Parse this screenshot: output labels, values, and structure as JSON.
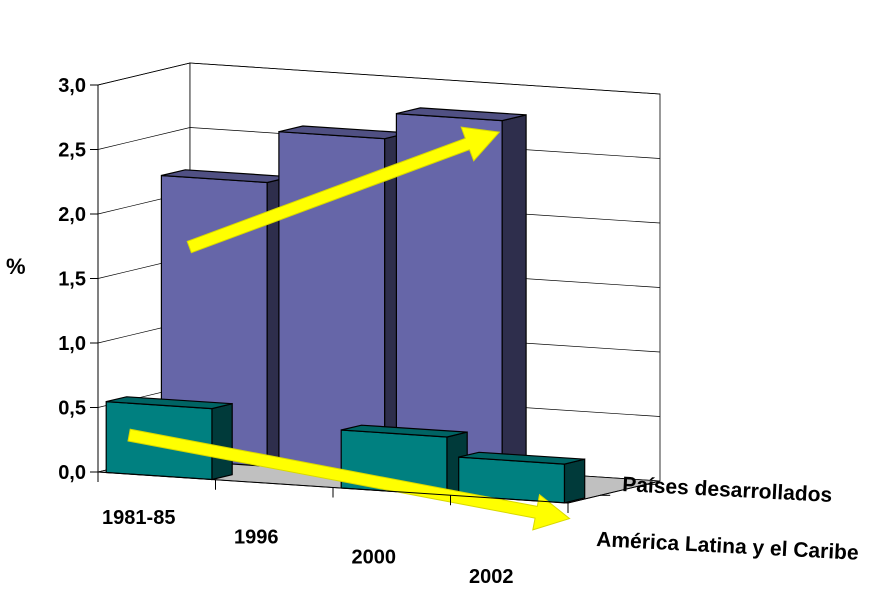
{
  "chart_data": {
    "type": "bar",
    "title": "",
    "ylabel": "%",
    "ylim": [
      0,
      3.0
    ],
    "y_ticks": [
      "0,0",
      "0,5",
      "1,0",
      "1,5",
      "2,0",
      "2,5",
      "3,0"
    ],
    "categories": [
      "1981-85",
      "1996",
      "2000",
      "2002"
    ],
    "series": [
      {
        "name": "Países desarrollados",
        "values": [
          2.2,
          2.6,
          2.8,
          null
        ],
        "color": "#6666a8"
      },
      {
        "name": "América Latina y el Caribe",
        "values": [
          0.55,
          null,
          0.45,
          0.3
        ],
        "color": "#008080"
      }
    ],
    "annotations": [
      "upward trend arrow on Países desarrollados",
      "downward trend arrow on América Latina y el Caribe"
    ],
    "arrow_color": "#ffff00",
    "grid": true,
    "floor_color": "#c0c0c0"
  }
}
